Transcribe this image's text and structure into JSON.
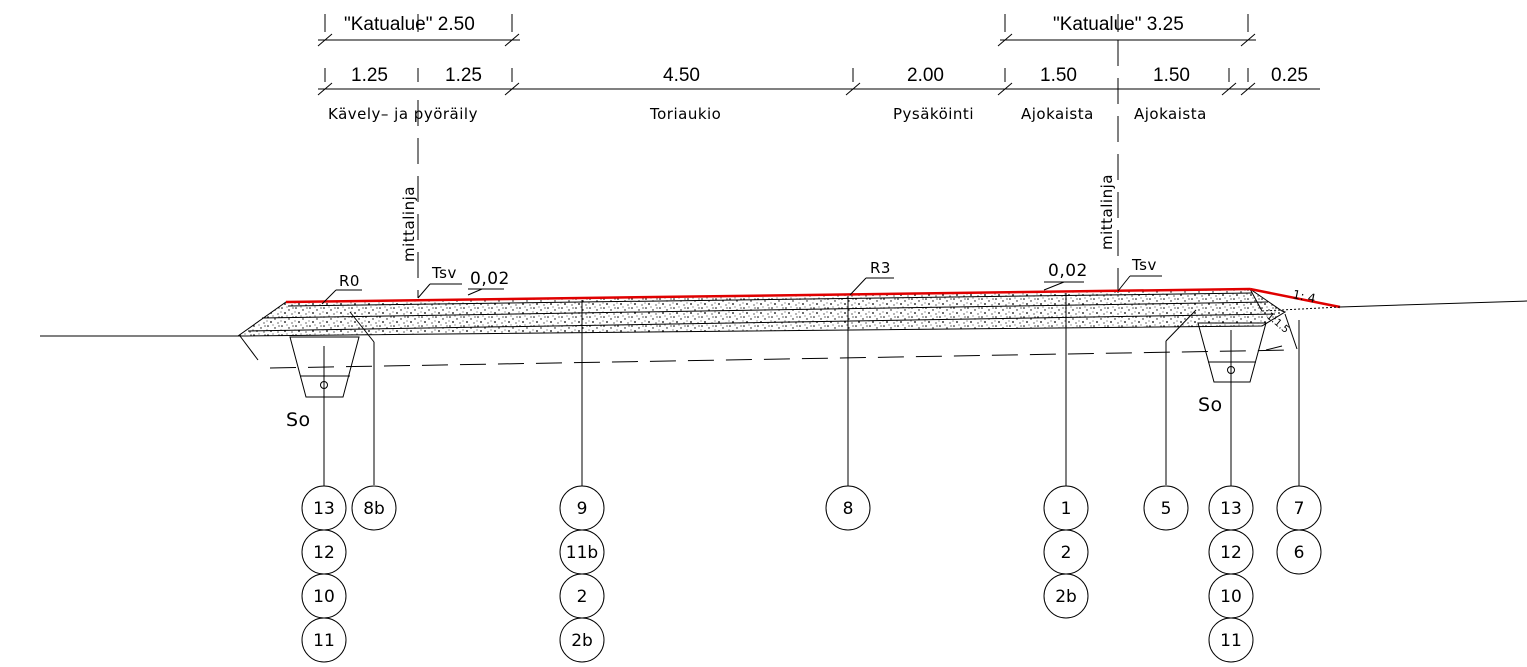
{
  "top_dims": {
    "left_total": "\"Katualue\" 2.50",
    "right_total": "\"Katualue\" 3.25"
  },
  "dims": [
    "1.25",
    "1.25",
    "4.50",
    "2.00",
    "1.50",
    "1.50",
    "0.25"
  ],
  "zones": {
    "walk": "Kävely–  ja  pyöräily",
    "square": "Toriaukio",
    "parking": "Pysäköinti",
    "lane_left": "Ajokaista",
    "lane_right": "Ajokaista"
  },
  "measure_line_label": "mittalinja",
  "labels": {
    "r0": "R0",
    "r3": "R3",
    "tsv_left": "Tsv",
    "tsv_right": "Tsv",
    "slope_left": "0,02",
    "slope_right": "0,02",
    "slope_14": "1: 4",
    "slope_115": "1:1.5",
    "so_left": "So",
    "so_right": "So"
  },
  "balloons": {
    "col1": [
      "13",
      "12",
      "10",
      "11"
    ],
    "col2": [
      "8b"
    ],
    "col3": [
      "9",
      "11b",
      "2",
      "2b"
    ],
    "col4": [
      "8"
    ],
    "col5": [
      "1",
      "2",
      "2b"
    ],
    "col6": [
      "5"
    ],
    "col7": [
      "13",
      "12",
      "10",
      "11"
    ],
    "col8": [
      "7",
      "6"
    ]
  },
  "colors": {
    "line": "#000000",
    "surface": "#e00000",
    "background": "#ffffff"
  }
}
